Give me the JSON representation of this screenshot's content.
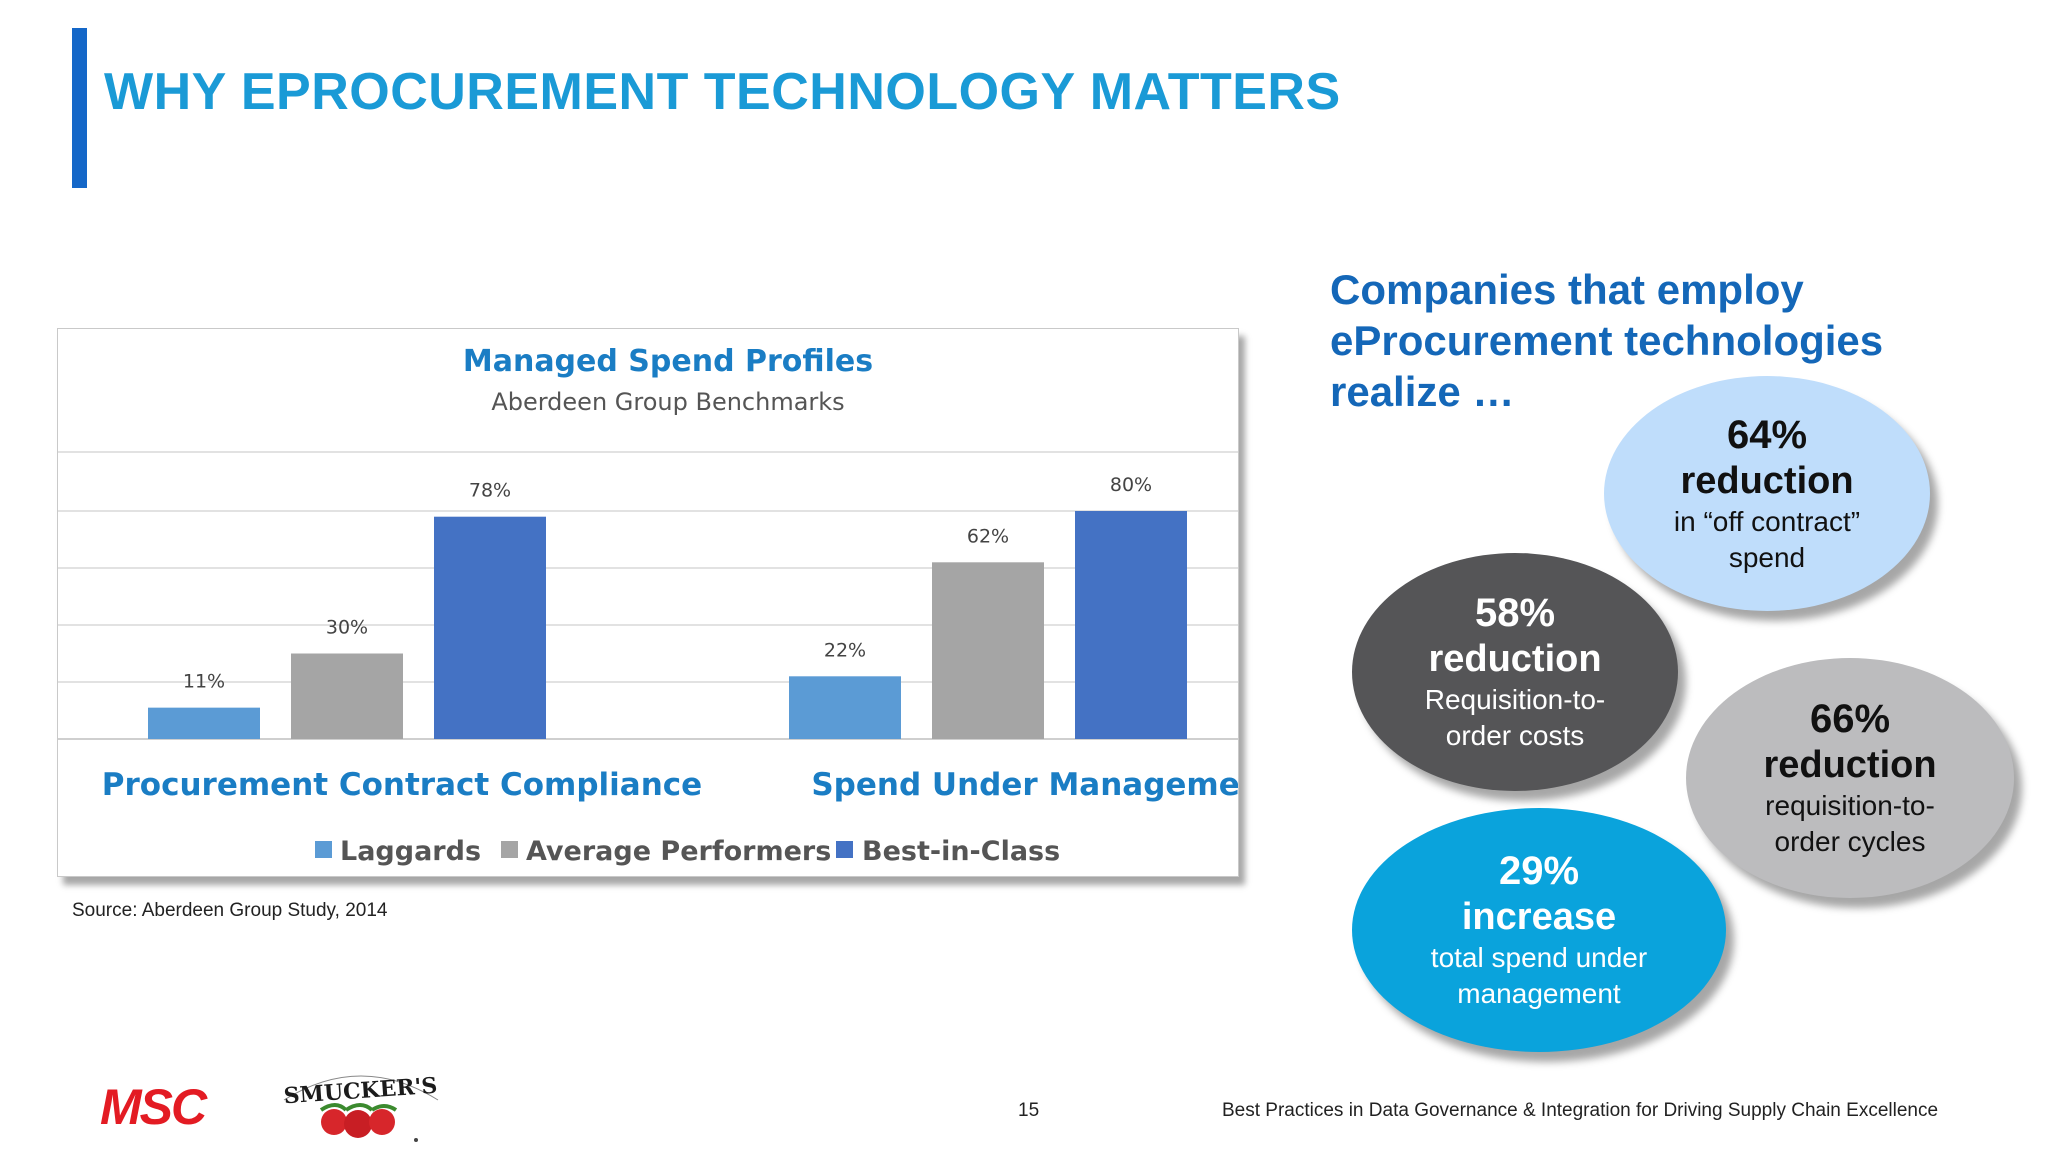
{
  "slide": {
    "title": "WHY EPROCUREMENT TECHNOLOGY MATTERS",
    "source": "Source: Aberdeen Group Study, 2014",
    "page_number": "15",
    "footer": "Best Practices in Data Governance & Integration for Driving Supply Chain Excellence",
    "logos": {
      "msc": "MSC",
      "smuckers": "SMUCKER'S"
    },
    "colors": {
      "accent_bar": "#1467c8",
      "title": "#1a9ad6"
    }
  },
  "side": {
    "heading": "Companies that employ eProcurement technologies realize …",
    "bubbles": [
      {
        "pct": "64%",
        "verb": "reduction",
        "desc": "in “off contract” spend",
        "color": "#bfddfb"
      },
      {
        "pct": "58%",
        "verb": "reduction",
        "desc": "Requisition-to-order costs",
        "color": "#555557"
      },
      {
        "pct": "66%",
        "verb": "reduction",
        "desc": "requisition-to-order cycles",
        "color": "#bcbcbe"
      },
      {
        "pct": "29%",
        "verb": "increase",
        "desc": "total spend under management",
        "color": "#0aa3dc"
      }
    ]
  },
  "chart_data": {
    "type": "bar",
    "title": "Managed Spend Profiles",
    "subtitle": "Aberdeen Group Benchmarks",
    "categories": [
      "Procurement Contract Compliance",
      "Spend Under Management"
    ],
    "series": [
      {
        "name": "Laggards",
        "values": [
          11,
          22
        ],
        "labels": [
          "11%",
          "22%"
        ],
        "color": "#5b9bd5"
      },
      {
        "name": "Average Performers",
        "values": [
          30,
          62
        ],
        "labels": [
          "30%",
          "62%"
        ],
        "color": "#a5a5a5"
      },
      {
        "name": "Best-in-Class",
        "values": [
          78,
          80
        ],
        "labels": [
          "78%",
          "80%"
        ],
        "color": "#4472c4"
      }
    ],
    "ylim": [
      0,
      100
    ],
    "grid": true,
    "legend": "bottom"
  }
}
